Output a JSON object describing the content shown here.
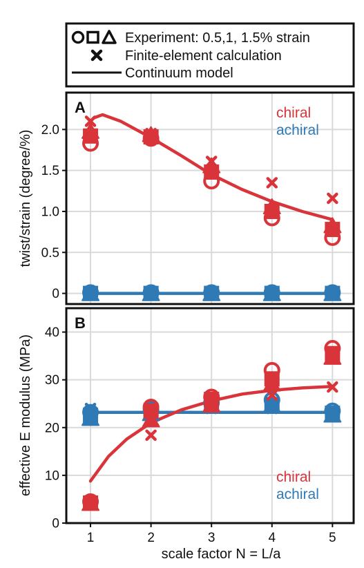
{
  "colors": {
    "chiral": "#d9343a",
    "achiral": "#2f7ab5",
    "frame": "#111111",
    "grid": "#d9d9d9"
  },
  "legend": {
    "experiment": "Experiment: 0.5,1, 1.5% strain",
    "fe": "Finite-element calculation",
    "model": "Continuum model"
  },
  "chart_data": [
    {
      "panel": "A",
      "type": "scatter",
      "xlabel": "",
      "ylabel": "twist/strain (degree/%)",
      "xlim": [
        0.6,
        5.35
      ],
      "ylim": [
        -0.13,
        2.45
      ],
      "yticks": [
        0,
        0.5,
        1.0,
        1.5,
        2.0
      ],
      "ytick_labels": [
        "0",
        "0.5",
        "1.0",
        "1.5",
        "2.0"
      ],
      "grid": true,
      "annotations": {
        "chiral": "chiral",
        "achiral": "achiral"
      },
      "series": [
        {
          "name": "chiral",
          "group": "chiral",
          "kind": "circle",
          "x": [
            1,
            2,
            3,
            4,
            5
          ],
          "y": [
            1.83,
            1.89,
            1.37,
            0.92,
            0.68
          ]
        },
        {
          "name": "chiral",
          "group": "chiral",
          "kind": "square",
          "x": [
            1,
            2,
            3,
            4,
            5
          ],
          "y": [
            1.92,
            1.91,
            1.48,
            1.0,
            0.78
          ]
        },
        {
          "name": "chiral",
          "group": "chiral",
          "kind": "triangle",
          "x": [
            1,
            2,
            3,
            4,
            5
          ],
          "y": [
            1.97,
            1.93,
            1.55,
            1.05,
            0.82
          ]
        },
        {
          "name": "chiral",
          "group": "chiral",
          "kind": "cross",
          "x": [
            1,
            2,
            3,
            4,
            5
          ],
          "y": [
            2.1,
            1.95,
            1.61,
            1.35,
            1.16
          ]
        },
        {
          "name": "chiral",
          "group": "chiral",
          "kind": "line",
          "x": [
            1.05,
            1.2,
            1.5,
            2,
            2.5,
            3,
            3.5,
            4,
            4.5,
            5
          ],
          "y": [
            2.14,
            2.18,
            2.1,
            1.9,
            1.68,
            1.45,
            1.27,
            1.12,
            1.0,
            0.9
          ]
        },
        {
          "name": "achiral",
          "group": "achiral",
          "kind": "circle",
          "x": [
            1,
            2,
            3,
            4,
            5
          ],
          "y": [
            0.01,
            0.01,
            0.01,
            0.01,
            0.01
          ]
        },
        {
          "name": "achiral",
          "group": "achiral",
          "kind": "square",
          "x": [
            1,
            2,
            3,
            4,
            5
          ],
          "y": [
            0,
            0,
            0,
            0,
            0
          ]
        },
        {
          "name": "achiral",
          "group": "achiral",
          "kind": "triangle",
          "x": [
            1,
            2,
            3,
            4,
            5
          ],
          "y": [
            -0.01,
            -0.01,
            -0.01,
            -0.01,
            -0.01
          ]
        },
        {
          "name": "achiral",
          "group": "achiral",
          "kind": "cross",
          "x": [
            1,
            2,
            3,
            4,
            5
          ],
          "y": [
            0,
            0,
            0,
            0,
            0
          ]
        },
        {
          "name": "achiral",
          "group": "achiral",
          "kind": "line",
          "x": [
            1,
            5
          ],
          "y": [
            0,
            0
          ]
        }
      ]
    },
    {
      "panel": "B",
      "type": "scatter",
      "xlabel": "scale factor N = L/a",
      "ylabel": "effective E modulus (MPa)",
      "xlim": [
        0.6,
        5.35
      ],
      "ylim": [
        0,
        45
      ],
      "xticks": [
        1,
        2,
        3,
        4,
        5
      ],
      "xtick_labels": [
        "1",
        "2",
        "3",
        "4",
        "5"
      ],
      "yticks": [
        0,
        10,
        20,
        30,
        40
      ],
      "ytick_labels": [
        "0",
        "10",
        "20",
        "30",
        "40"
      ],
      "grid": true,
      "annotations": {
        "chiral": "chiral",
        "achiral": "achiral"
      },
      "series": [
        {
          "name": "chiral",
          "group": "chiral",
          "kind": "circle",
          "x": [
            1,
            2,
            3,
            4,
            5
          ],
          "y": [
            4.5,
            24.3,
            26.4,
            32.0,
            36.6
          ]
        },
        {
          "name": "chiral",
          "group": "chiral",
          "kind": "square",
          "x": [
            1,
            2,
            3,
            4,
            5
          ],
          "y": [
            4.2,
            23.5,
            25.9,
            30.2,
            35.5
          ]
        },
        {
          "name": "chiral",
          "group": "chiral",
          "kind": "triangle",
          "x": [
            1,
            2,
            3,
            4,
            5
          ],
          "y": [
            4.0,
            21.5,
            24.6,
            29.0,
            34.6
          ]
        },
        {
          "name": "chiral",
          "group": "chiral",
          "kind": "cross",
          "x": [
            1,
            2,
            3,
            4,
            5
          ],
          "y": [
            4.5,
            18.4,
            25.8,
            26.8,
            28.5
          ]
        },
        {
          "name": "chiral",
          "group": "chiral",
          "kind": "line",
          "x": [
            1,
            1.3,
            1.6,
            2,
            2.5,
            3,
            3.5,
            4,
            4.5,
            5
          ],
          "y": [
            8.8,
            14.0,
            17.6,
            21.0,
            23.7,
            25.6,
            27.0,
            27.8,
            28.3,
            28.6
          ]
        },
        {
          "name": "achiral",
          "group": "achiral",
          "kind": "circle",
          "x": [
            1,
            2,
            3,
            4,
            5
          ],
          "y": [
            23.2,
            23.8,
            25.2,
            25.8,
            23.5
          ]
        },
        {
          "name": "achiral",
          "group": "achiral",
          "kind": "square",
          "x": [
            1,
            2,
            3,
            4,
            5
          ],
          "y": [
            22.6,
            23.2,
            24.6,
            24.8,
            23.0
          ]
        },
        {
          "name": "achiral",
          "group": "achiral",
          "kind": "triangle",
          "x": [
            1,
            2,
            3,
            4,
            5
          ],
          "y": [
            21.8,
            22.8,
            24.3,
            24.5,
            22.5
          ]
        },
        {
          "name": "achiral",
          "group": "achiral",
          "kind": "cross",
          "x": [
            1,
            2,
            3,
            4,
            5
          ],
          "y": [
            24.0,
            23.6,
            24.0,
            24.0,
            23.3
          ]
        },
        {
          "name": "achiral",
          "group": "achiral",
          "kind": "line",
          "x": [
            1,
            5
          ],
          "y": [
            23.2,
            23.2
          ]
        }
      ]
    }
  ]
}
